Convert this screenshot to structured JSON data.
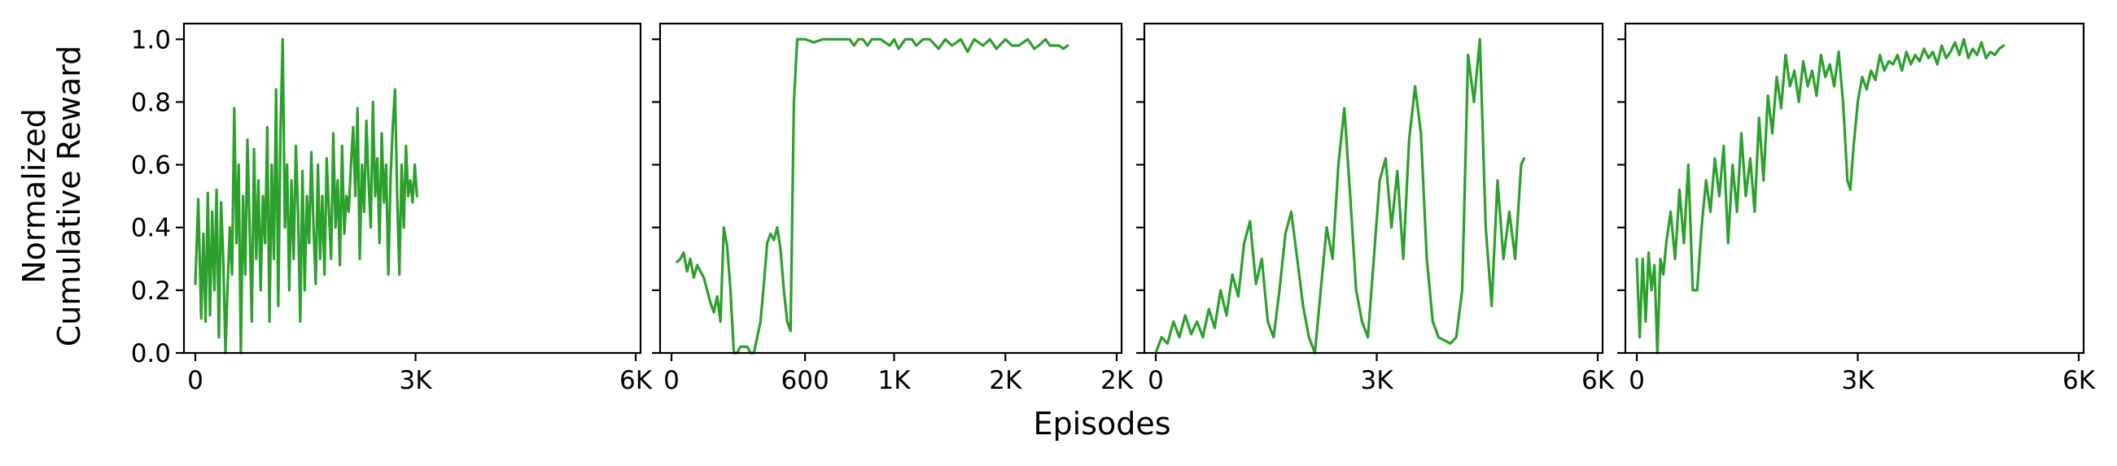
{
  "figure": {
    "ylabel_lines": [
      "Normalized",
      "Cumulative Reward"
    ],
    "xlabel": "Episodes",
    "line_color": "#2ca02c"
  },
  "chart_data": [
    {
      "type": "line",
      "title": "",
      "xlim": [
        0,
        6000
      ],
      "ylim": [
        0,
        1.05
      ],
      "xticks": [
        {
          "value": 0,
          "label": "0"
        },
        {
          "value": 3000,
          "label": "3K"
        },
        {
          "value": 6000,
          "label": "6K"
        }
      ],
      "yticks": [
        {
          "value": 0.0,
          "label": "0.0"
        },
        {
          "value": 0.2,
          "label": "0.2"
        },
        {
          "value": 0.4,
          "label": "0.4"
        },
        {
          "value": 0.6,
          "label": "0.6"
        },
        {
          "value": 0.8,
          "label": "0.8"
        },
        {
          "value": 1.0,
          "label": "1.0"
        }
      ],
      "series": [
        {
          "x": [
            0,
            40,
            80,
            110,
            140,
            170,
            200,
            230,
            260,
            290,
            320,
            350,
            380,
            410,
            440,
            470,
            500,
            530,
            560,
            590,
            620,
            650,
            680,
            710,
            740,
            770,
            800,
            830,
            860,
            890,
            920,
            950,
            980,
            1010,
            1040,
            1070,
            1100,
            1130,
            1160,
            1190,
            1220,
            1250,
            1280,
            1310,
            1340,
            1370,
            1400,
            1430,
            1460,
            1490,
            1520,
            1550,
            1580,
            1610,
            1640,
            1670,
            1700,
            1730,
            1760,
            1790,
            1820,
            1850,
            1880,
            1910,
            1940,
            1970,
            2000,
            2030,
            2060,
            2090,
            2120,
            2150,
            2180,
            2210,
            2240,
            2270,
            2300,
            2330,
            2360,
            2390,
            2420,
            2450,
            2480,
            2510,
            2540,
            2570,
            2600,
            2630,
            2660,
            2690,
            2720,
            2750,
            2780,
            2810,
            2840,
            2870,
            2900,
            2930,
            2960,
            2990,
            3020
          ],
          "y": [
            0.22,
            0.49,
            0.11,
            0.38,
            0.1,
            0.51,
            0.12,
            0.45,
            0.2,
            0.52,
            0.05,
            0.48,
            0.3,
            0.0,
            0.22,
            0.4,
            0.25,
            0.78,
            0.35,
            0.6,
            0.0,
            0.5,
            0.25,
            0.68,
            0.4,
            0.1,
            0.65,
            0.3,
            0.55,
            0.2,
            0.5,
            0.35,
            0.72,
            0.1,
            0.6,
            0.3,
            0.84,
            0.15,
            0.7,
            1.0,
            0.4,
            0.6,
            0.2,
            0.55,
            0.3,
            0.66,
            0.45,
            0.1,
            0.58,
            0.2,
            0.5,
            0.35,
            0.64,
            0.4,
            0.22,
            0.6,
            0.3,
            0.5,
            0.25,
            0.62,
            0.45,
            0.3,
            0.7,
            0.4,
            0.55,
            0.28,
            0.66,
            0.38,
            0.5,
            0.45,
            0.6,
            0.72,
            0.5,
            0.78,
            0.3,
            0.6,
            0.45,
            0.74,
            0.55,
            0.4,
            0.8,
            0.5,
            0.62,
            0.35,
            0.7,
            0.48,
            0.6,
            0.25,
            0.55,
            0.72,
            0.84,
            0.5,
            0.25,
            0.6,
            0.4,
            0.66,
            0.5,
            0.55,
            0.48,
            0.6,
            0.5
          ]
        }
      ]
    },
    {
      "type": "line",
      "title": "",
      "xlim": [
        0,
        2000
      ],
      "ylim": [
        0,
        1.05
      ],
      "xticks": [
        {
          "value": 0,
          "label": "0"
        },
        {
          "value": 600,
          "label": "600"
        },
        {
          "value": 1000,
          "label": "1K"
        },
        {
          "value": 1500,
          "label": "2K"
        },
        {
          "value": 2000,
          "label": "2K"
        }
      ],
      "yticks": [
        {
          "value": 0.0,
          "label": ""
        },
        {
          "value": 0.2,
          "label": ""
        },
        {
          "value": 0.4,
          "label": ""
        },
        {
          "value": 0.6,
          "label": ""
        },
        {
          "value": 0.8,
          "label": ""
        },
        {
          "value": 1.0,
          "label": ""
        }
      ],
      "series": [
        {
          "x": [
            25,
            40,
            55,
            70,
            85,
            100,
            115,
            130,
            145,
            160,
            175,
            190,
            205,
            220,
            235,
            250,
            265,
            280,
            295,
            310,
            325,
            340,
            355,
            370,
            385,
            400,
            415,
            430,
            445,
            460,
            475,
            490,
            505,
            520,
            535,
            550,
            565,
            580,
            600,
            640,
            680,
            720,
            760,
            800,
            820,
            840,
            860,
            880,
            900,
            940,
            980,
            1000,
            1020,
            1050,
            1080,
            1100,
            1130,
            1160,
            1200,
            1230,
            1260,
            1300,
            1330,
            1360,
            1400,
            1430,
            1460,
            1500,
            1530,
            1560,
            1600,
            1630,
            1650,
            1680,
            1700,
            1720,
            1740,
            1760,
            1780
          ],
          "y": [
            0.29,
            0.3,
            0.32,
            0.26,
            0.3,
            0.24,
            0.28,
            0.26,
            0.24,
            0.2,
            0.16,
            0.13,
            0.18,
            0.1,
            0.4,
            0.34,
            0.2,
            0.0,
            0.0,
            0.02,
            0.02,
            0.02,
            0.0,
            0.0,
            0.05,
            0.1,
            0.22,
            0.35,
            0.38,
            0.36,
            0.4,
            0.33,
            0.2,
            0.1,
            0.07,
            0.8,
            1.0,
            1.0,
            1.0,
            0.99,
            1.0,
            1.0,
            1.0,
            1.0,
            0.98,
            1.0,
            1.0,
            0.98,
            1.0,
            1.0,
            0.98,
            1.0,
            0.97,
            1.0,
            1.0,
            0.98,
            1.0,
            1.0,
            0.97,
            1.0,
            0.98,
            1.0,
            0.96,
            1.0,
            0.98,
            1.0,
            0.97,
            1.0,
            0.98,
            0.98,
            1.0,
            0.97,
            0.98,
            1.0,
            0.98,
            0.98,
            0.98,
            0.97,
            0.98
          ]
        }
      ]
    },
    {
      "type": "line",
      "title": "",
      "xlim": [
        0,
        6000
      ],
      "ylim": [
        0,
        1.05
      ],
      "xticks": [
        {
          "value": 0,
          "label": "0"
        },
        {
          "value": 3000,
          "label": "3K"
        },
        {
          "value": 6000,
          "label": "6K"
        }
      ],
      "yticks": [
        {
          "value": 0.0,
          "label": ""
        },
        {
          "value": 0.2,
          "label": ""
        },
        {
          "value": 0.4,
          "label": ""
        },
        {
          "value": 0.6,
          "label": ""
        },
        {
          "value": 0.8,
          "label": ""
        },
        {
          "value": 1.0,
          "label": ""
        }
      ],
      "series": [
        {
          "x": [
            0,
            80,
            160,
            240,
            320,
            400,
            480,
            560,
            640,
            720,
            800,
            880,
            960,
            1040,
            1120,
            1200,
            1280,
            1360,
            1440,
            1520,
            1600,
            1680,
            1760,
            1840,
            1920,
            2000,
            2080,
            2160,
            2240,
            2320,
            2400,
            2480,
            2560,
            2640,
            2720,
            2800,
            2880,
            2960,
            3040,
            3120,
            3200,
            3280,
            3360,
            3440,
            3520,
            3600,
            3680,
            3760,
            3840,
            3920,
            4000,
            4080,
            4160,
            4240,
            4320,
            4400,
            4480,
            4560,
            4640,
            4720,
            4800,
            4880,
            4960,
            5000
          ],
          "y": [
            0.0,
            0.05,
            0.03,
            0.1,
            0.05,
            0.12,
            0.06,
            0.1,
            0.05,
            0.14,
            0.08,
            0.2,
            0.12,
            0.25,
            0.18,
            0.35,
            0.42,
            0.22,
            0.3,
            0.1,
            0.05,
            0.2,
            0.38,
            0.45,
            0.3,
            0.15,
            0.05,
            0.0,
            0.2,
            0.4,
            0.3,
            0.6,
            0.78,
            0.5,
            0.2,
            0.1,
            0.05,
            0.3,
            0.55,
            0.62,
            0.4,
            0.58,
            0.3,
            0.68,
            0.85,
            0.7,
            0.3,
            0.1,
            0.05,
            0.04,
            0.03,
            0.05,
            0.2,
            0.95,
            0.8,
            1.0,
            0.4,
            0.15,
            0.55,
            0.3,
            0.45,
            0.3,
            0.6,
            0.62
          ]
        }
      ]
    },
    {
      "type": "line",
      "title": "",
      "xlim": [
        0,
        6000
      ],
      "ylim": [
        0,
        1.05
      ],
      "xticks": [
        {
          "value": 0,
          "label": "0"
        },
        {
          "value": 3000,
          "label": "3K"
        },
        {
          "value": 6000,
          "label": "6K"
        }
      ],
      "yticks": [
        {
          "value": 0.0,
          "label": ""
        },
        {
          "value": 0.2,
          "label": ""
        },
        {
          "value": 0.4,
          "label": ""
        },
        {
          "value": 0.6,
          "label": ""
        },
        {
          "value": 0.8,
          "label": ""
        },
        {
          "value": 1.0,
          "label": ""
        }
      ],
      "series": [
        {
          "x": [
            0,
            40,
            80,
            120,
            160,
            200,
            240,
            280,
            320,
            360,
            400,
            460,
            520,
            580,
            640,
            700,
            760,
            820,
            880,
            940,
            1000,
            1060,
            1120,
            1180,
            1240,
            1300,
            1360,
            1420,
            1480,
            1540,
            1600,
            1660,
            1720,
            1780,
            1840,
            1900,
            1960,
            2020,
            2080,
            2140,
            2200,
            2260,
            2320,
            2380,
            2440,
            2500,
            2560,
            2620,
            2680,
            2740,
            2800,
            2860,
            2900,
            2940,
            3000,
            3060,
            3120,
            3180,
            3240,
            3300,
            3360,
            3420,
            3480,
            3540,
            3600,
            3660,
            3720,
            3780,
            3840,
            3900,
            3960,
            4020,
            4080,
            4140,
            4200,
            4260,
            4320,
            4380,
            4440,
            4500,
            4560,
            4620,
            4680,
            4740,
            4800,
            4860,
            4920,
            4980
          ],
          "y": [
            0.3,
            0.05,
            0.3,
            0.1,
            0.32,
            0.2,
            0.28,
            0.0,
            0.3,
            0.25,
            0.35,
            0.45,
            0.3,
            0.52,
            0.35,
            0.6,
            0.2,
            0.2,
            0.4,
            0.55,
            0.45,
            0.62,
            0.5,
            0.66,
            0.35,
            0.6,
            0.45,
            0.7,
            0.5,
            0.62,
            0.45,
            0.75,
            0.55,
            0.82,
            0.7,
            0.88,
            0.78,
            0.95,
            0.85,
            0.9,
            0.8,
            0.93,
            0.85,
            0.9,
            0.82,
            0.95,
            0.88,
            0.92,
            0.85,
            0.96,
            0.8,
            0.55,
            0.52,
            0.65,
            0.8,
            0.88,
            0.84,
            0.9,
            0.87,
            0.95,
            0.9,
            0.93,
            0.92,
            0.95,
            0.9,
            0.96,
            0.92,
            0.95,
            0.93,
            0.97,
            0.94,
            0.96,
            0.92,
            0.98,
            0.94,
            0.96,
            0.99,
            0.95,
            1.0,
            0.94,
            0.97,
            0.95,
            0.99,
            0.94,
            0.96,
            0.95,
            0.97,
            0.98
          ]
        }
      ]
    }
  ]
}
